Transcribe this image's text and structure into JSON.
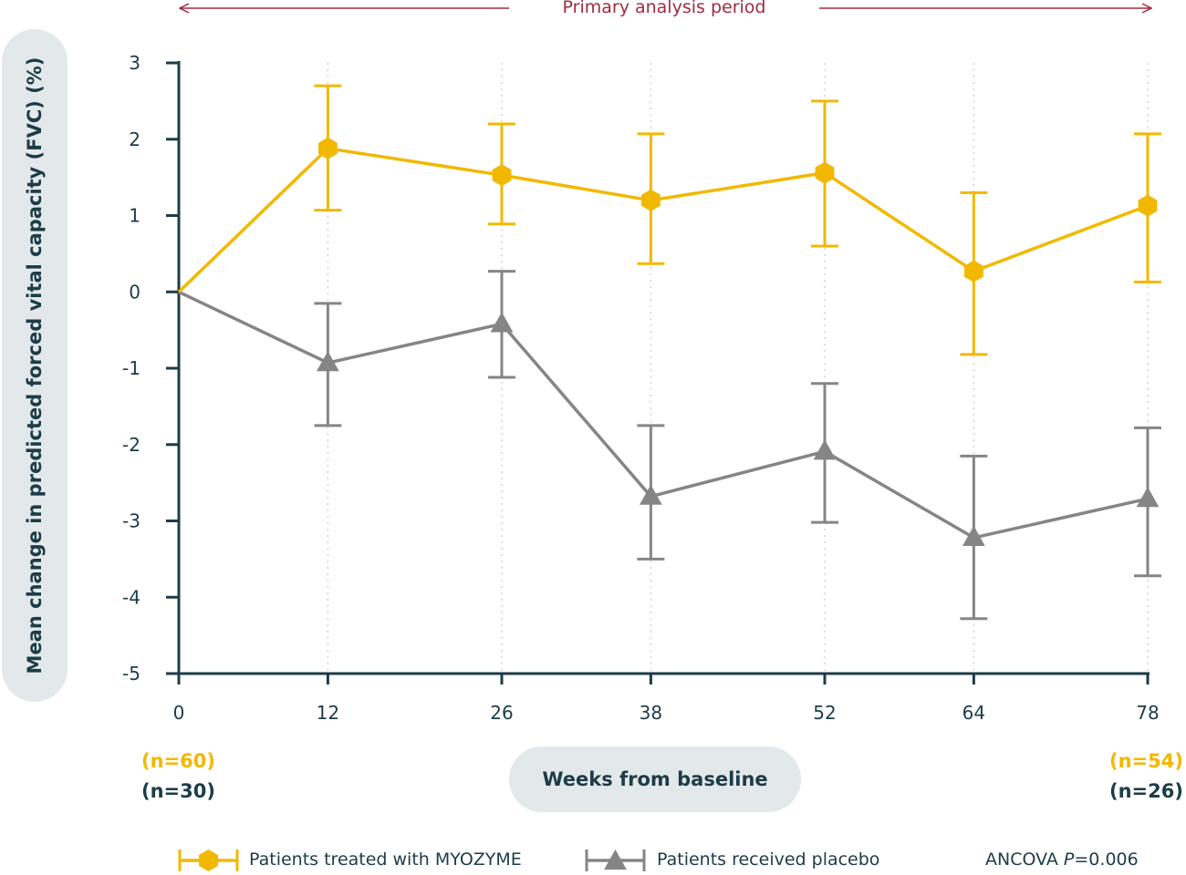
{
  "chart_data": {
    "type": "line",
    "xlabel": "Weeks from baseline",
    "ylabel": "Mean change in predicted forced vital capacity (FVC) (%)",
    "x": [
      0,
      12,
      26,
      38,
      52,
      64,
      78
    ],
    "ylim": [
      -5,
      3
    ],
    "yticks": [
      3,
      2,
      1,
      0,
      -1,
      -2,
      -3,
      -4,
      -5
    ],
    "grid": "dotted vertical lines at x ticks",
    "annotation": "Primary analysis period",
    "series": [
      {
        "name": "Patients treated with MYOZYME",
        "color": "#f2b800",
        "marker": "hexagon",
        "values": [
          0,
          1.88,
          1.53,
          1.2,
          1.56,
          0.27,
          1.13
        ],
        "error_low": [
          null,
          1.07,
          0.89,
          0.37,
          0.6,
          -0.82,
          0.13
        ],
        "error_high": [
          null,
          2.7,
          2.2,
          2.07,
          2.5,
          1.3,
          2.07
        ]
      },
      {
        "name": "Patients received placebo",
        "color": "#858585",
        "marker": "triangle",
        "values": [
          0,
          -0.93,
          -0.42,
          -2.68,
          -2.09,
          -3.22,
          -2.71
        ],
        "error_low": [
          null,
          -1.75,
          -1.12,
          -3.5,
          -3.02,
          -4.28,
          -3.72
        ],
        "error_high": [
          null,
          -0.15,
          0.27,
          -1.75,
          -1.2,
          -2.15,
          -1.78
        ]
      }
    ],
    "n_labels": {
      "start_treated": "(n=60)",
      "start_placebo": "(n=30)",
      "end_treated": "(n=54)",
      "end_placebo": "(n=26)"
    },
    "stat_prefix": "ANCOVA ",
    "stat_p": "P",
    "stat_value": "=0.006"
  }
}
